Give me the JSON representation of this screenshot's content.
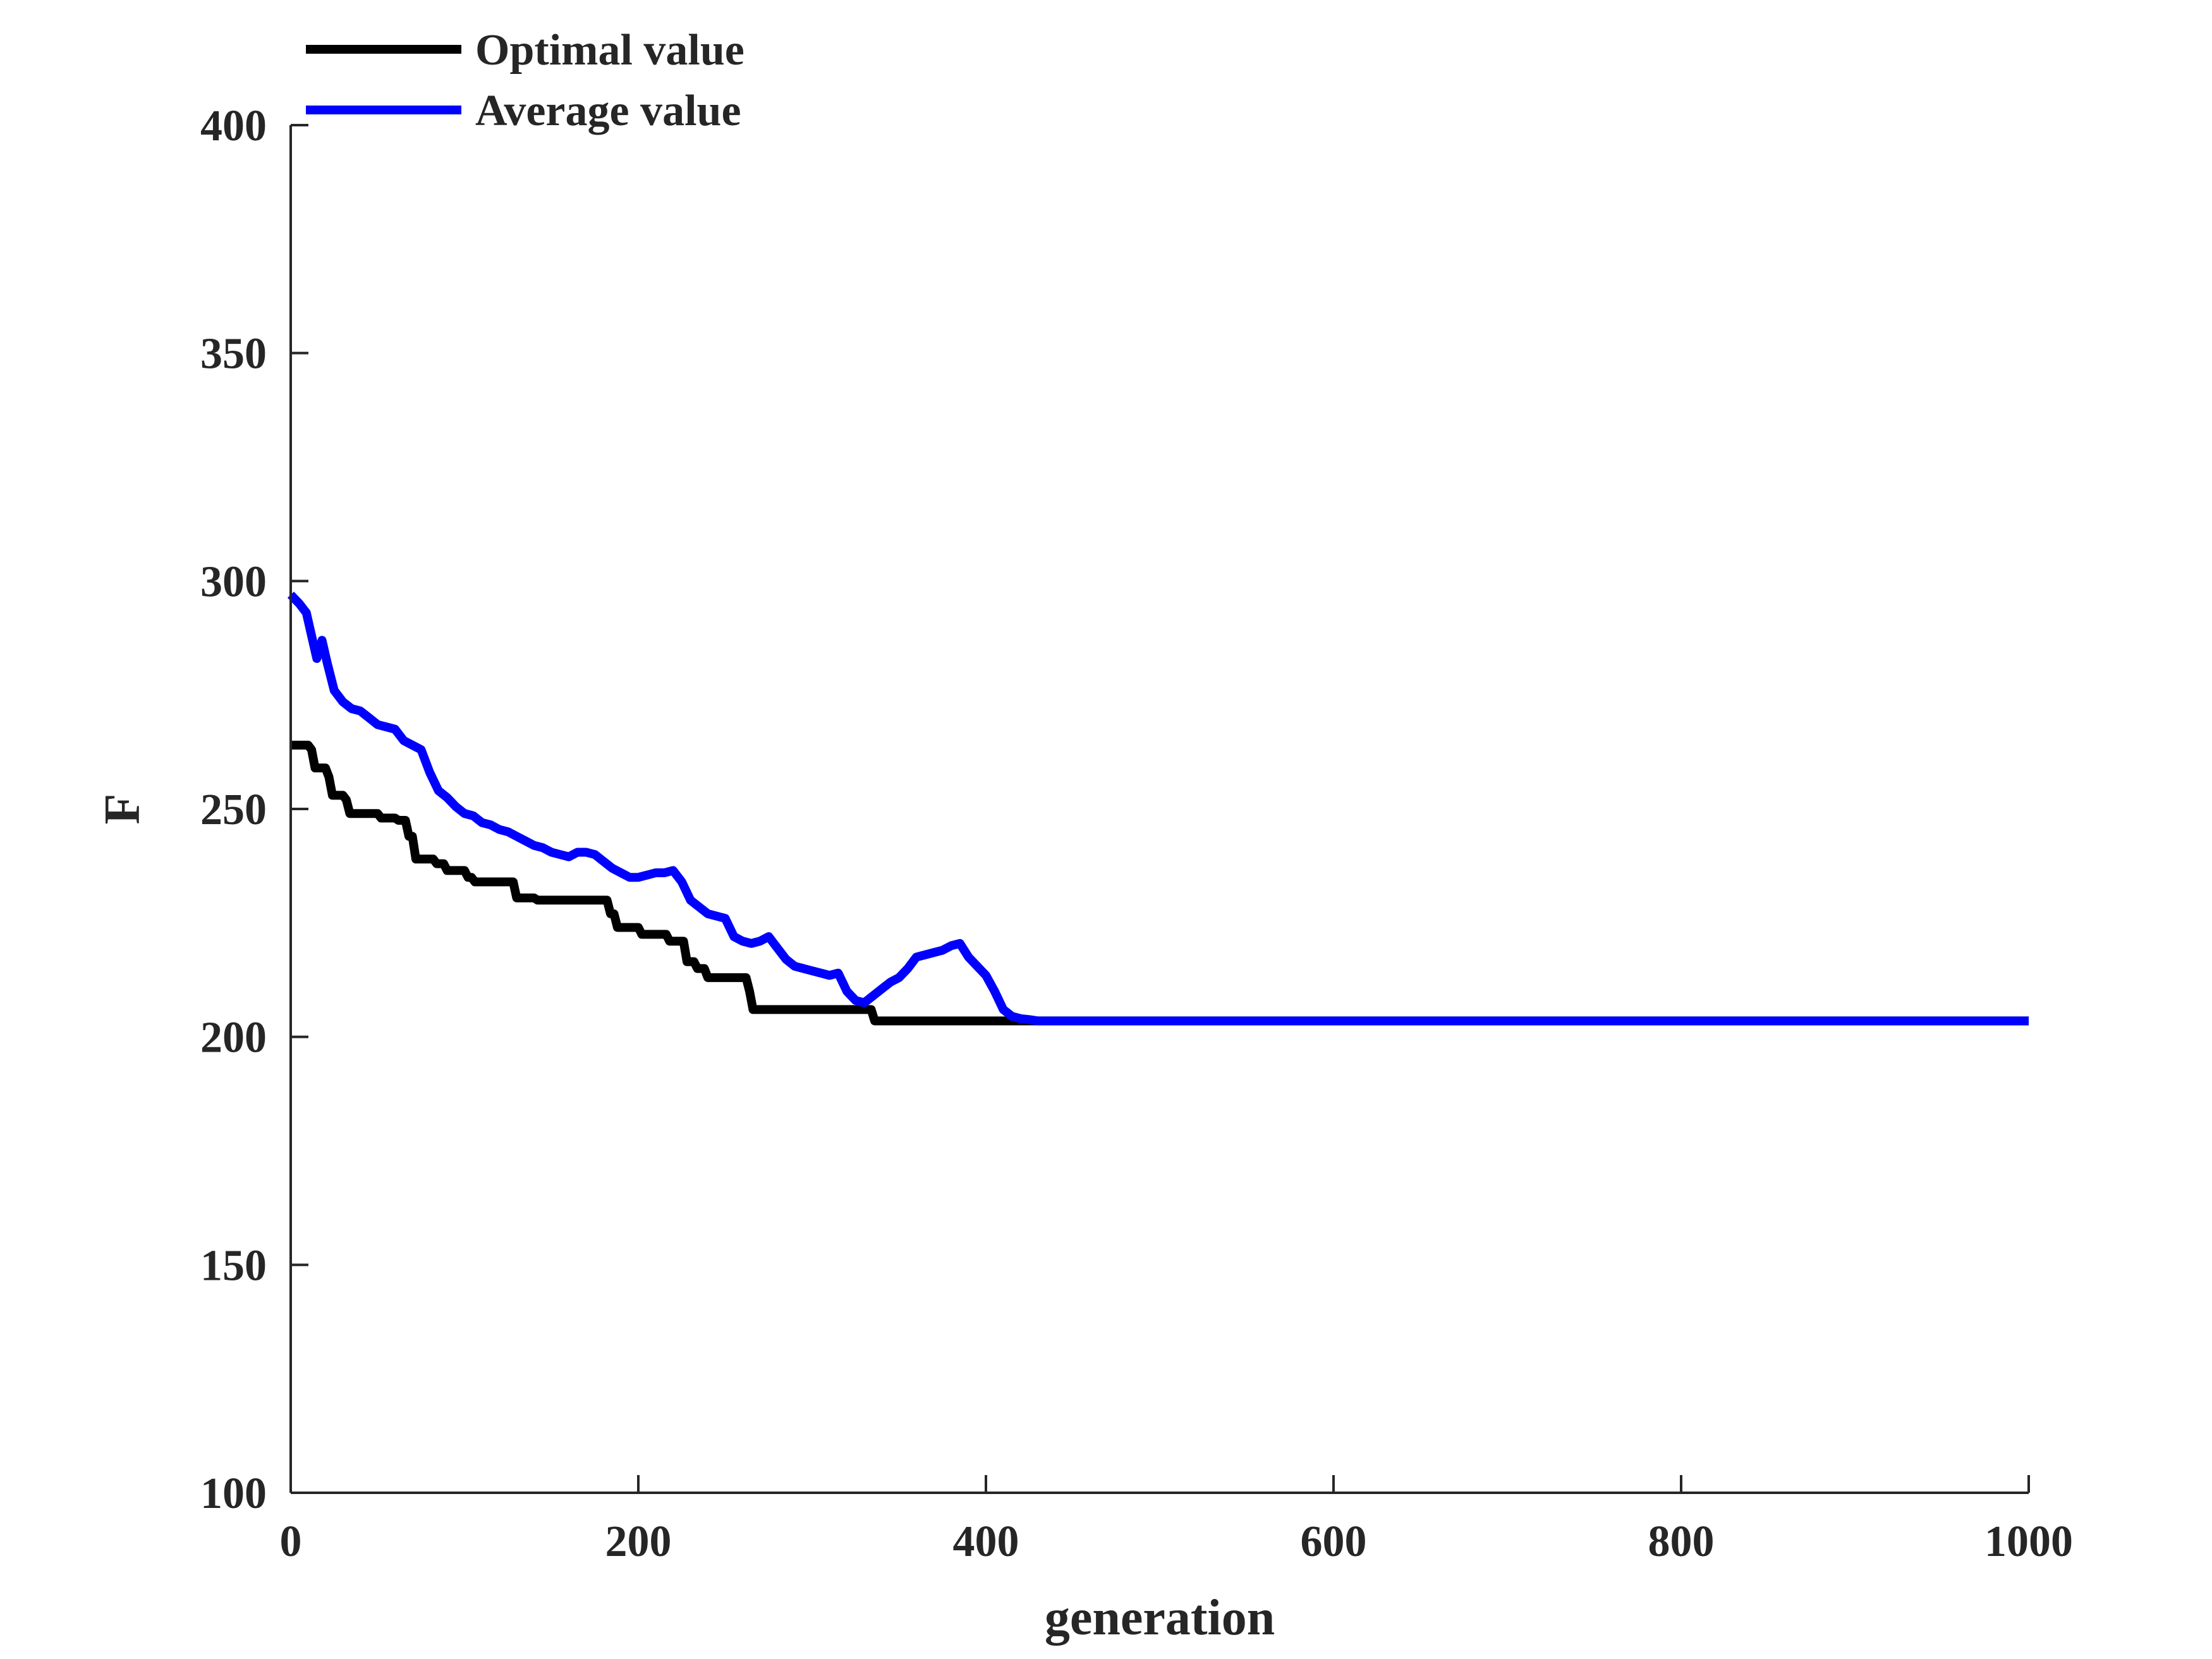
{
  "chart_data": {
    "type": "line",
    "title": "",
    "xlabel": "generation",
    "ylabel": "F",
    "xlim": [
      0,
      1000
    ],
    "ylim": [
      100,
      400
    ],
    "xticks": [
      0,
      200,
      400,
      600,
      800,
      1000
    ],
    "yticks": [
      100,
      150,
      200,
      250,
      300,
      350,
      400
    ],
    "legend_position": "top-left",
    "grid": false,
    "series": [
      {
        "name": "Optimal value",
        "color": "#000000",
        "points": [
          [
            0,
            264
          ],
          [
            10,
            264
          ],
          [
            12,
            263
          ],
          [
            14,
            259
          ],
          [
            20,
            259
          ],
          [
            22,
            257
          ],
          [
            24,
            253
          ],
          [
            30,
            253
          ],
          [
            32,
            252
          ],
          [
            34,
            249
          ],
          [
            50,
            249
          ],
          [
            52,
            248
          ],
          [
            60,
            248
          ],
          [
            62,
            247.5
          ],
          [
            66,
            247.5
          ],
          [
            68,
            244
          ],
          [
            70,
            244
          ],
          [
            72,
            239
          ],
          [
            82,
            239
          ],
          [
            84,
            238
          ],
          [
            88,
            238
          ],
          [
            90,
            236.5
          ],
          [
            100,
            236.5
          ],
          [
            102,
            235
          ],
          [
            104,
            235
          ],
          [
            106,
            234
          ],
          [
            128,
            234
          ],
          [
            130,
            230.5
          ],
          [
            140,
            230.5
          ],
          [
            142,
            230
          ],
          [
            182,
            230
          ],
          [
            184,
            227
          ],
          [
            186,
            227
          ],
          [
            188,
            224
          ],
          [
            200,
            224
          ],
          [
            202,
            222.5
          ],
          [
            216,
            222.5
          ],
          [
            218,
            221
          ],
          [
            226,
            221
          ],
          [
            228,
            216.5
          ],
          [
            232,
            216.5
          ],
          [
            234,
            215
          ],
          [
            238,
            215
          ],
          [
            240,
            213
          ],
          [
            262,
            213
          ],
          [
            264,
            210
          ],
          [
            266,
            206
          ],
          [
            334,
            206
          ],
          [
            336,
            203.5
          ],
          [
            1000,
            203.5
          ]
        ]
      },
      {
        "name": "Average value",
        "color": "#0000ff",
        "points": [
          [
            0,
            297
          ],
          [
            5,
            295
          ],
          [
            9,
            293
          ],
          [
            12,
            288
          ],
          [
            15,
            283
          ],
          [
            18,
            287
          ],
          [
            21,
            282
          ],
          [
            25,
            276
          ],
          [
            30,
            273.5
          ],
          [
            35,
            272
          ],
          [
            40,
            271.5
          ],
          [
            45,
            270
          ],
          [
            50,
            268.5
          ],
          [
            55,
            268
          ],
          [
            60,
            267.5
          ],
          [
            65,
            265
          ],
          [
            70,
            264
          ],
          [
            75,
            263
          ],
          [
            80,
            258
          ],
          [
            85,
            254
          ],
          [
            90,
            252.5
          ],
          [
            95,
            250.5
          ],
          [
            100,
            249
          ],
          [
            105,
            248.5
          ],
          [
            110,
            247
          ],
          [
            115,
            246.5
          ],
          [
            120,
            245.5
          ],
          [
            125,
            245
          ],
          [
            130,
            244
          ],
          [
            135,
            243
          ],
          [
            140,
            242
          ],
          [
            145,
            241.5
          ],
          [
            150,
            240.5
          ],
          [
            155,
            240
          ],
          [
            160,
            239.5
          ],
          [
            165,
            240.5
          ],
          [
            170,
            240.5
          ],
          [
            175,
            240
          ],
          [
            180,
            238.5
          ],
          [
            185,
            237
          ],
          [
            190,
            236
          ],
          [
            195,
            235
          ],
          [
            200,
            235
          ],
          [
            205,
            235.5
          ],
          [
            210,
            236
          ],
          [
            215,
            236
          ],
          [
            220,
            236.5
          ],
          [
            225,
            234
          ],
          [
            230,
            230
          ],
          [
            235,
            228.5
          ],
          [
            240,
            227
          ],
          [
            245,
            226.5
          ],
          [
            250,
            226
          ],
          [
            255,
            222
          ],
          [
            260,
            221
          ],
          [
            265,
            220.5
          ],
          [
            270,
            221
          ],
          [
            275,
            222
          ],
          [
            280,
            219.5
          ],
          [
            285,
            217
          ],
          [
            290,
            215.5
          ],
          [
            295,
            215
          ],
          [
            300,
            214.5
          ],
          [
            305,
            214
          ],
          [
            310,
            213.5
          ],
          [
            315,
            214
          ],
          [
            320,
            210
          ],
          [
            325,
            208
          ],
          [
            330,
            207.5
          ],
          [
            335,
            209
          ],
          [
            340,
            210.5
          ],
          [
            345,
            212
          ],
          [
            350,
            213
          ],
          [
            355,
            215
          ],
          [
            360,
            217.5
          ],
          [
            365,
            218
          ],
          [
            370,
            218.5
          ],
          [
            375,
            219
          ],
          [
            380,
            220
          ],
          [
            385,
            220.5
          ],
          [
            390,
            217.5
          ],
          [
            395,
            215.5
          ],
          [
            400,
            213.5
          ],
          [
            405,
            210
          ],
          [
            410,
            206
          ],
          [
            415,
            204.5
          ],
          [
            420,
            204
          ],
          [
            425,
            203.8
          ],
          [
            430,
            203.5
          ],
          [
            1000,
            203.5
          ]
        ]
      }
    ]
  }
}
